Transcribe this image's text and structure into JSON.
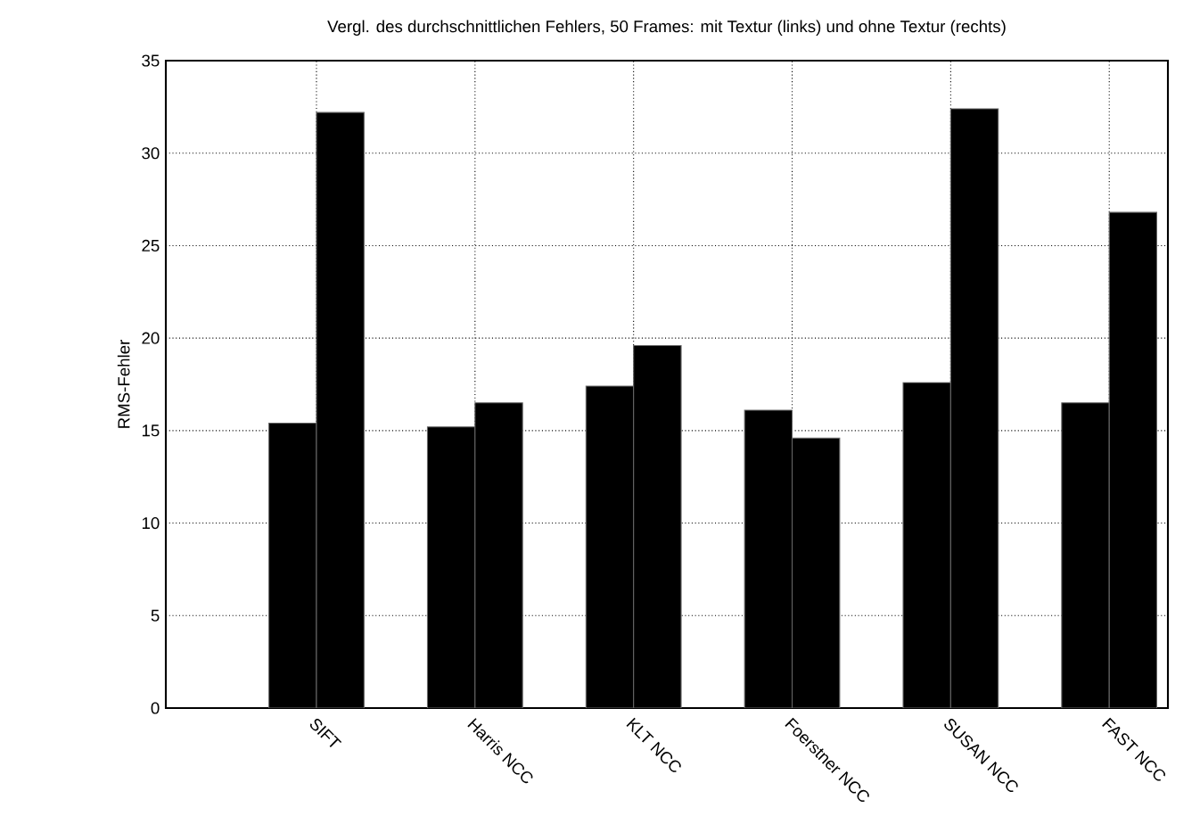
{
  "chart_data": {
    "type": "bar",
    "title": "Vergl. des durchschnittlichen Fehlers, 50 Frames: mit Textur (links) und ohne Textur (rechts)",
    "ylabel": "RMS-Fehler",
    "categories": [
      "SIFT",
      "Harris NCC",
      "KLT NCC",
      "Foerstner NCC",
      "SUSAN NCC",
      "FAST NCC"
    ],
    "series": [
      {
        "color": "#000000",
        "values": [
          15.4,
          15.2,
          17.4,
          16.1,
          17.6,
          16.5
        ]
      },
      {
        "color": "#000000",
        "values": [
          32.2,
          16.5,
          19.6,
          14.6,
          32.4,
          26.8
        ]
      }
    ],
    "ylim": [
      0,
      35
    ],
    "yticks": [
      0,
      5,
      10,
      15,
      20,
      25,
      30,
      35
    ],
    "grid": true
  }
}
